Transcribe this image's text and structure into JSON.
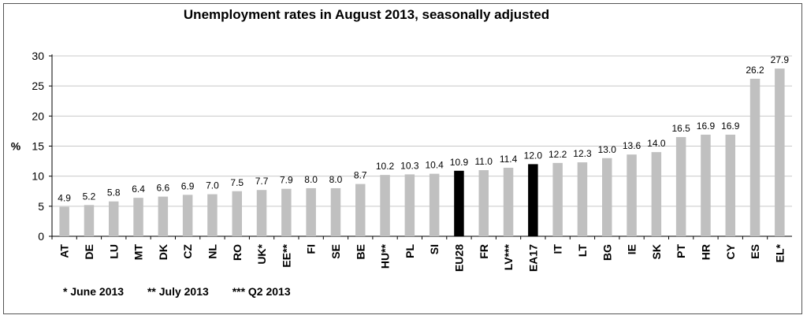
{
  "chart_data": {
    "type": "bar",
    "title": "Unemployment rates in August 2013, seasonally adjusted",
    "ylabel": "%",
    "ylim": [
      0,
      30
    ],
    "yticks": [
      0,
      5,
      10,
      15,
      20,
      25,
      30
    ],
    "grid": true,
    "categories": [
      "AT",
      "DE",
      "LU",
      "MT",
      "DK",
      "CZ",
      "NL",
      "RO",
      "UK*",
      "EE**",
      "FI",
      "SE",
      "BE",
      "HU**",
      "PL",
      "SI",
      "EU28",
      "FR",
      "LV***",
      "EA17",
      "IT",
      "LT",
      "BG",
      "IE",
      "SK",
      "PT",
      "HR",
      "CY",
      "ES",
      "EL*"
    ],
    "values": [
      4.9,
      5.2,
      5.8,
      6.4,
      6.6,
      6.9,
      7.0,
      7.5,
      7.7,
      7.9,
      8.0,
      8.0,
      8.7,
      10.2,
      10.3,
      10.4,
      10.9,
      11.0,
      11.4,
      12.0,
      12.2,
      12.3,
      13.0,
      13.6,
      14.0,
      16.5,
      16.9,
      16.9,
      26.2,
      27.9
    ],
    "value_labels": [
      "4.9",
      "5.2",
      "5.8",
      "6.4",
      "6.6",
      "6.9",
      "7.0",
      "7.5",
      "7.7",
      "7.9",
      "8.0",
      "8.0",
      "8.7",
      "10.2",
      "10.3",
      "10.4",
      "10.9",
      "11.0",
      "11.4",
      "12.0",
      "12.2",
      "12.3",
      "13.0",
      "13.6",
      "14.0",
      "16.5",
      "16.9",
      "16.9",
      "26.2",
      "27.9"
    ],
    "highlighted": [
      "EU28",
      "EA17"
    ],
    "colors": {
      "bar": "#c0c0c0",
      "highlight": "#000000",
      "grid": "#c8c8c8",
      "axis": "#000000"
    },
    "footnotes": [
      "* June 2013",
      "** July 2013",
      "*** Q2 2013"
    ]
  }
}
